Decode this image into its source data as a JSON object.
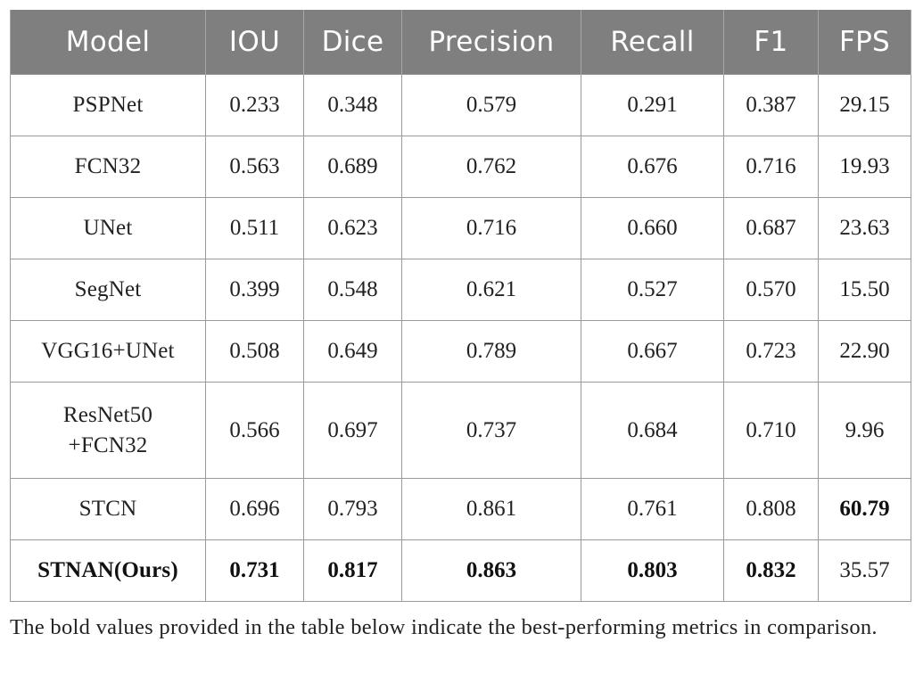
{
  "table": {
    "headers": [
      "Model",
      "IOU",
      "Dice",
      "Precision",
      "Recall",
      "F1",
      "FPS"
    ],
    "rows": [
      {
        "model": "PSPNet",
        "iou": "0.233",
        "dice": "0.348",
        "precision": "0.579",
        "recall": "0.291",
        "f1": "0.387",
        "fps": "29.15"
      },
      {
        "model": "FCN32",
        "iou": "0.563",
        "dice": "0.689",
        "precision": "0.762",
        "recall": "0.676",
        "f1": "0.716",
        "fps": "19.93"
      },
      {
        "model": "UNet",
        "iou": "0.511",
        "dice": "0.623",
        "precision": "0.716",
        "recall": "0.660",
        "f1": "0.687",
        "fps": "23.63"
      },
      {
        "model": "SegNet",
        "iou": "0.399",
        "dice": "0.548",
        "precision": "0.621",
        "recall": "0.527",
        "f1": "0.570",
        "fps": "15.50"
      },
      {
        "model": "VGG16+UNet",
        "iou": "0.508",
        "dice": "0.649",
        "precision": "0.789",
        "recall": "0.667",
        "f1": "0.723",
        "fps": "22.90"
      },
      {
        "model_line1": "ResNet50",
        "model_line2": "+FCN32",
        "iou": "0.566",
        "dice": "0.697",
        "precision": "0.737",
        "recall": "0.684",
        "f1": "0.710",
        "fps": "9.96"
      },
      {
        "model": "STCN",
        "iou": "0.696",
        "dice": "0.793",
        "precision": "0.861",
        "recall": "0.761",
        "f1": "0.808",
        "fps": "60.79"
      },
      {
        "model": "STNAN(Ours)",
        "iou": "0.731",
        "dice": "0.817",
        "precision": "0.863",
        "recall": "0.803",
        "f1": "0.832",
        "fps": "35.57"
      }
    ]
  },
  "footnote": "The bold values provided in the table below indicate the best-performing metrics in comparison."
}
